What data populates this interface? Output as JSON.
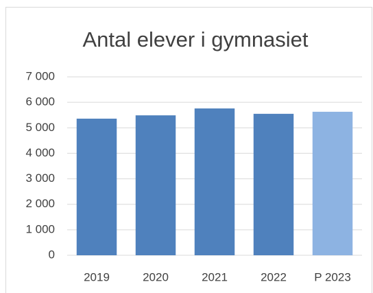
{
  "chart_data": {
    "type": "bar",
    "title": "Antal elever i gymnasiet",
    "categories": [
      "2019",
      "2020",
      "2021",
      "2022",
      "P 2023"
    ],
    "values": [
      5360,
      5490,
      5760,
      5550,
      5630
    ],
    "colors": [
      "#4f81bd",
      "#4f81bd",
      "#4f81bd",
      "#4f81bd",
      "#8db3e2"
    ],
    "ylim": [
      0,
      7000
    ],
    "yticks": [
      0,
      {
        "value": 1000,
        "label": "1 000"
      },
      {
        "value": 2000,
        "label": "2 000"
      },
      {
        "value": 3000,
        "label": "3 000"
      },
      {
        "value": 4000,
        "label": "4 000"
      },
      {
        "value": 5000,
        "label": "5 000"
      },
      {
        "value": 6000,
        "label": "6 000"
      },
      {
        "value": 7000,
        "label": "7 000"
      }
    ],
    "grid": true
  }
}
